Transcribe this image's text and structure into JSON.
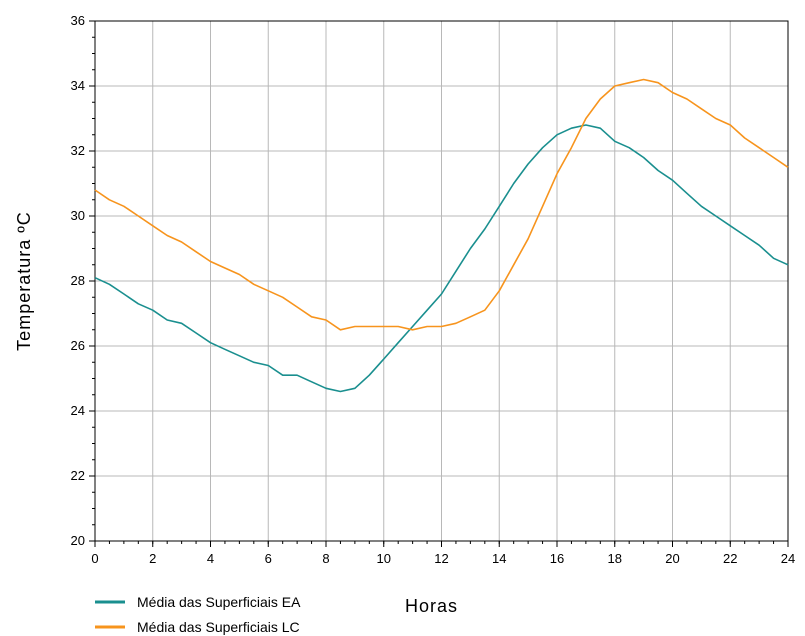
{
  "chart_data": {
    "type": "line",
    "title": "",
    "xlabel": "Horas",
    "ylabel": "Temperatura ºC",
    "xlim": [
      0,
      24
    ],
    "ylim": [
      20,
      36
    ],
    "x_ticks": [
      0,
      2,
      4,
      6,
      8,
      10,
      12,
      14,
      16,
      18,
      20,
      22,
      24
    ],
    "y_ticks": [
      20,
      22,
      24,
      26,
      28,
      30,
      32,
      34,
      36
    ],
    "grid": true,
    "legend_position": "bottom-left",
    "series": [
      {
        "name": "Média das Superficiais EA",
        "color": "#1a8f8f",
        "points": [
          [
            0,
            28.1
          ],
          [
            0.5,
            27.9
          ],
          [
            1,
            27.6
          ],
          [
            1.5,
            27.3
          ],
          [
            2,
            27.1
          ],
          [
            2.5,
            26.8
          ],
          [
            3,
            26.7
          ],
          [
            3.5,
            26.4
          ],
          [
            4,
            26.1
          ],
          [
            4.5,
            25.9
          ],
          [
            5,
            25.7
          ],
          [
            5.5,
            25.5
          ],
          [
            6,
            25.4
          ],
          [
            6.5,
            25.1
          ],
          [
            7,
            25.1
          ],
          [
            7.5,
            24.9
          ],
          [
            8,
            24.7
          ],
          [
            8.5,
            24.6
          ],
          [
            9,
            24.7
          ],
          [
            9.5,
            25.1
          ],
          [
            10,
            25.6
          ],
          [
            10.5,
            26.1
          ],
          [
            11,
            26.6
          ],
          [
            11.5,
            27.1
          ],
          [
            12,
            27.6
          ],
          [
            12.5,
            28.3
          ],
          [
            13,
            29.0
          ],
          [
            13.5,
            29.6
          ],
          [
            14,
            30.3
          ],
          [
            14.5,
            31.0
          ],
          [
            15,
            31.6
          ],
          [
            15.5,
            32.1
          ],
          [
            16,
            32.5
          ],
          [
            16.5,
            32.7
          ],
          [
            17,
            32.8
          ],
          [
            17.5,
            32.7
          ],
          [
            18,
            32.3
          ],
          [
            18.5,
            32.1
          ],
          [
            19,
            31.8
          ],
          [
            19.5,
            31.4
          ],
          [
            20,
            31.1
          ],
          [
            20.5,
            30.7
          ],
          [
            21,
            30.3
          ],
          [
            21.5,
            30.0
          ],
          [
            22,
            29.7
          ],
          [
            22.5,
            29.4
          ],
          [
            23,
            29.1
          ],
          [
            23.5,
            28.7
          ],
          [
            24,
            28.5
          ]
        ]
      },
      {
        "name": "Média das Superficiais LC",
        "color": "#f7941d",
        "points": [
          [
            0,
            30.8
          ],
          [
            0.5,
            30.5
          ],
          [
            1,
            30.3
          ],
          [
            1.5,
            30.0
          ],
          [
            2,
            29.7
          ],
          [
            2.5,
            29.4
          ],
          [
            3,
            29.2
          ],
          [
            3.5,
            28.9
          ],
          [
            4,
            28.6
          ],
          [
            4.5,
            28.4
          ],
          [
            5,
            28.2
          ],
          [
            5.5,
            27.9
          ],
          [
            6,
            27.7
          ],
          [
            6.5,
            27.5
          ],
          [
            7,
            27.2
          ],
          [
            7.5,
            26.9
          ],
          [
            8,
            26.8
          ],
          [
            8.5,
            26.5
          ],
          [
            9,
            26.6
          ],
          [
            9.5,
            26.6
          ],
          [
            10,
            26.6
          ],
          [
            10.5,
            26.6
          ],
          [
            11,
            26.5
          ],
          [
            11.5,
            26.6
          ],
          [
            12,
            26.6
          ],
          [
            12.5,
            26.7
          ],
          [
            13,
            26.9
          ],
          [
            13.5,
            27.1
          ],
          [
            14,
            27.7
          ],
          [
            14.5,
            28.5
          ],
          [
            15,
            29.3
          ],
          [
            15.5,
            30.3
          ],
          [
            16,
            31.3
          ],
          [
            16.5,
            32.1
          ],
          [
            17,
            33.0
          ],
          [
            17.5,
            33.6
          ],
          [
            18,
            34.0
          ],
          [
            18.5,
            34.1
          ],
          [
            19,
            34.2
          ],
          [
            19.5,
            34.1
          ],
          [
            20,
            33.8
          ],
          [
            20.5,
            33.6
          ],
          [
            21,
            33.3
          ],
          [
            21.5,
            33.0
          ],
          [
            22,
            32.8
          ],
          [
            22.5,
            32.4
          ],
          [
            23,
            32.1
          ],
          [
            23.5,
            31.8
          ],
          [
            24,
            31.5
          ]
        ]
      }
    ]
  }
}
